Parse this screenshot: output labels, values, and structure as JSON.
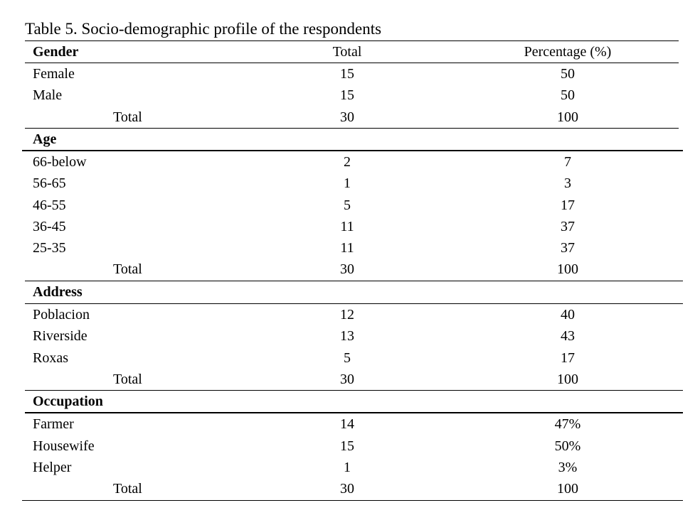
{
  "caption": "Table 5. Socio-demographic profile of the respondents",
  "header": {
    "col1": "Gender",
    "col2": "Total",
    "col3": "Percentage (%)"
  },
  "gender": {
    "rows": [
      {
        "label": "Female",
        "total": "15",
        "pct": "50"
      },
      {
        "label": "Male",
        "total": "15",
        "pct": "50"
      }
    ],
    "sum": {
      "label": "Total",
      "total": "30",
      "pct": "100"
    }
  },
  "age": {
    "title": "Age",
    "rows": [
      {
        "label": "66-below",
        "total": "2",
        "pct": "7"
      },
      {
        "label": "56-65",
        "total": "1",
        "pct": "3"
      },
      {
        "label": "46-55",
        "total": "5",
        "pct": "17"
      },
      {
        "label": "36-45",
        "total": "11",
        "pct": "37"
      },
      {
        "label": "25-35",
        "total": "11",
        "pct": "37"
      }
    ],
    "sum": {
      "label": "Total",
      "total": "30",
      "pct": "100"
    }
  },
  "address": {
    "title": "Address",
    "rows": [
      {
        "label": "Poblacion",
        "total": "12",
        "pct": "40"
      },
      {
        "label": "Riverside",
        "total": "13",
        "pct": "43"
      },
      {
        "label": "Roxas",
        "total": "5",
        "pct": "17"
      }
    ],
    "sum": {
      "label": "Total",
      "total": "30",
      "pct": "100"
    }
  },
  "occupation": {
    "title": "Occupation",
    "rows": [
      {
        "label": "Farmer",
        "total": "14",
        "pct": "47%"
      },
      {
        "label": "Housewife",
        "total": "15",
        "pct": "50%"
      },
      {
        "label": "Helper",
        "total": "1",
        "pct": "3%"
      }
    ],
    "sum": {
      "label": "Total",
      "total": "30",
      "pct": "100"
    }
  }
}
